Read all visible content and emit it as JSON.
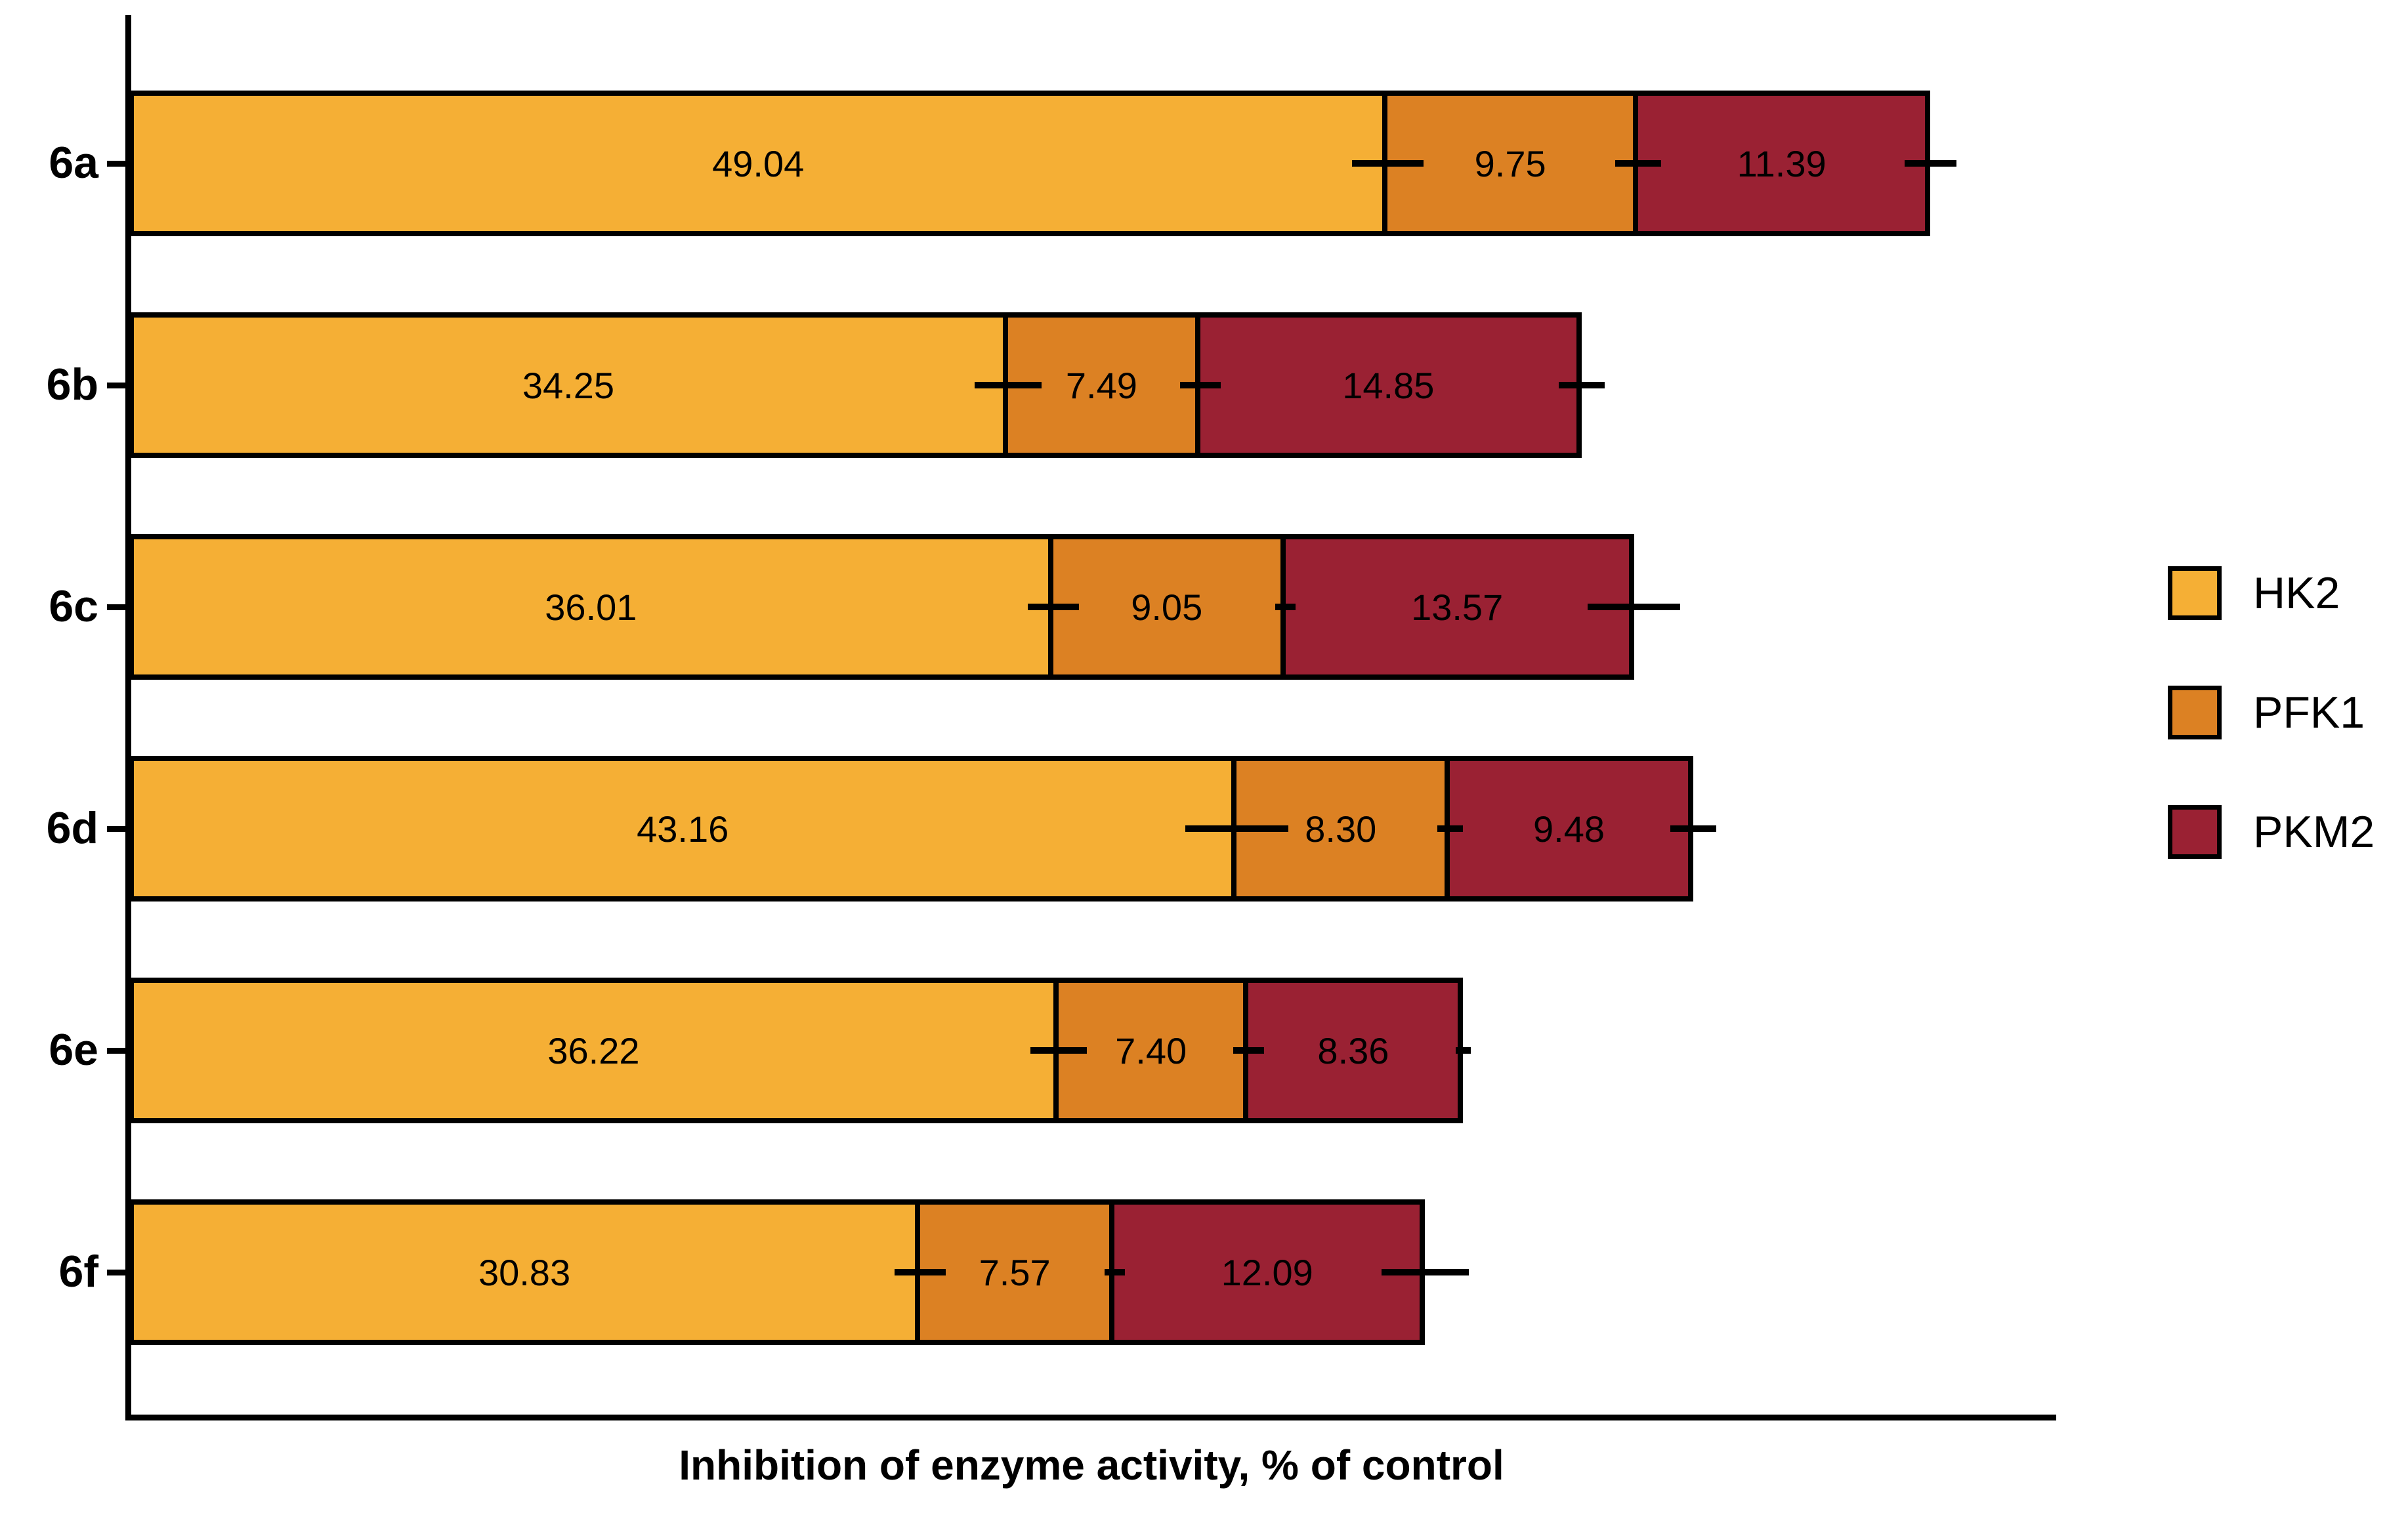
{
  "chart_data": {
    "type": "bar",
    "orientation": "horizontal",
    "stacked": true,
    "title": "",
    "xlabel": "Inhibition of enzyme activity, % of control",
    "ylabel": "",
    "xlim": [
      0,
      75
    ],
    "grid": false,
    "legend_position": "right",
    "value_labels": true,
    "categories": [
      "6a",
      "6b",
      "6c",
      "6d",
      "6e",
      "6f"
    ],
    "series": [
      {
        "name": "HK2",
        "color": "#F5AF35",
        "values": [
          49.04,
          34.25,
          36.01,
          43.16,
          36.22,
          30.83
        ],
        "errors": [
          1.4,
          1.3,
          1.0,
          2.0,
          1.1,
          1.0
        ]
      },
      {
        "name": "PFK1",
        "color": "#DC8123",
        "values": [
          9.75,
          7.49,
          9.05,
          8.3,
          7.4,
          7.57
        ],
        "errors": [
          0.9,
          0.8,
          0.4,
          0.5,
          0.6,
          0.4
        ]
      },
      {
        "name": "PKM2",
        "color": "#9A2133",
        "values": [
          11.39,
          14.85,
          13.57,
          9.48,
          8.36,
          12.09
        ],
        "errors": [
          1.0,
          0.9,
          1.8,
          0.9,
          0.3,
          1.7
        ]
      }
    ],
    "bar_border_color": "#000000",
    "error_bar_color": "#000000",
    "axis_color": "#000000"
  }
}
